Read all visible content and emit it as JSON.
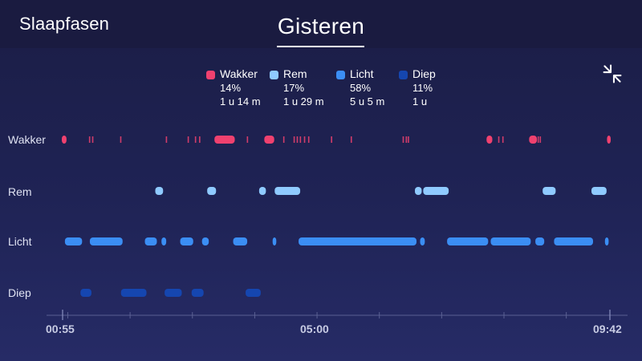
{
  "header": {
    "app_title": "Slaapfasen",
    "page_title": "Gisteren"
  },
  "legend": [
    {
      "label": "Wakker",
      "percent": "14%",
      "duration": "1 u 14 m",
      "color": "#f0416f"
    },
    {
      "label": "Rem",
      "percent": "17%",
      "duration": "1 u 29 m",
      "color": "#8fcaff"
    },
    {
      "label": "Licht",
      "percent": "58%",
      "duration": "5 u 5 m",
      "color": "#3b8ef4"
    },
    {
      "label": "Diep",
      "percent": "11%",
      "duration": "1 u",
      "color": "#1546b0"
    }
  ],
  "icons": {
    "collapse": "collapse-arrows-icon"
  },
  "chart_data": {
    "type": "line",
    "stages": [
      "Wakker",
      "Rem",
      "Licht",
      "Diep"
    ],
    "x_tick_labels": [
      "00:55",
      "05:00",
      "09:42"
    ],
    "x_start": "00:55",
    "x_end": "09:42",
    "segments": [
      {
        "start": "00:55",
        "end": "00:58",
        "stage": "Wakker"
      },
      {
        "start": "00:58",
        "end": "01:13",
        "stage": "Licht"
      },
      {
        "start": "01:13",
        "end": "01:22",
        "stage": "Diep"
      },
      {
        "start": "01:22",
        "end": "01:52",
        "stage": "Licht"
      },
      {
        "start": "01:52",
        "end": "02:15",
        "stage": "Diep"
      },
      {
        "start": "02:15",
        "end": "02:25",
        "stage": "Licht"
      },
      {
        "start": "02:25",
        "end": "02:31",
        "stage": "Rem"
      },
      {
        "start": "02:31",
        "end": "02:34",
        "stage": "Licht"
      },
      {
        "start": "02:34",
        "end": "02:49",
        "stage": "Diep"
      },
      {
        "start": "02:49",
        "end": "03:00",
        "stage": "Licht"
      },
      {
        "start": "03:00",
        "end": "03:10",
        "stage": "Diep"
      },
      {
        "start": "03:10",
        "end": "03:15",
        "stage": "Licht"
      },
      {
        "start": "03:15",
        "end": "03:22",
        "stage": "Rem"
      },
      {
        "start": "03:22",
        "end": "03:40",
        "stage": "Wakker"
      },
      {
        "start": "03:40",
        "end": "03:52",
        "stage": "Licht"
      },
      {
        "start": "03:52",
        "end": "04:05",
        "stage": "Diep"
      },
      {
        "start": "04:05",
        "end": "04:10",
        "stage": "Rem"
      },
      {
        "start": "04:10",
        "end": "04:18",
        "stage": "Wakker"
      },
      {
        "start": "04:18",
        "end": "04:20",
        "stage": "Licht"
      },
      {
        "start": "04:20",
        "end": "04:43",
        "stage": "Rem"
      },
      {
        "start": "04:43",
        "end": "06:35",
        "stage": "Licht"
      },
      {
        "start": "06:35",
        "end": "06:40",
        "stage": "Rem"
      },
      {
        "start": "06:40",
        "end": "06:43",
        "stage": "Licht"
      },
      {
        "start": "06:43",
        "end": "07:06",
        "stage": "Rem"
      },
      {
        "start": "07:06",
        "end": "07:44",
        "stage": "Licht"
      },
      {
        "start": "07:44",
        "end": "07:48",
        "stage": "Wakker"
      },
      {
        "start": "07:48",
        "end": "08:25",
        "stage": "Licht"
      },
      {
        "start": "08:25",
        "end": "08:31",
        "stage": "Wakker"
      },
      {
        "start": "08:31",
        "end": "08:38",
        "stage": "Licht"
      },
      {
        "start": "08:38",
        "end": "08:49",
        "stage": "Rem"
      },
      {
        "start": "08:49",
        "end": "09:25",
        "stage": "Licht"
      },
      {
        "start": "09:25",
        "end": "09:38",
        "stage": "Rem"
      },
      {
        "start": "09:38",
        "end": "09:40",
        "stage": "Licht"
      },
      {
        "start": "09:40",
        "end": "09:42",
        "stage": "Wakker"
      }
    ],
    "short_awakenings": [
      "01:21",
      "01:24",
      "01:51",
      "02:35",
      "02:56",
      "03:03",
      "03:07",
      "03:53",
      "04:28",
      "04:38",
      "04:41",
      "04:44",
      "04:48",
      "04:52",
      "05:14",
      "05:33",
      "06:23",
      "06:26",
      "06:28",
      "07:55",
      "07:59",
      "08:33",
      "08:35"
    ]
  }
}
